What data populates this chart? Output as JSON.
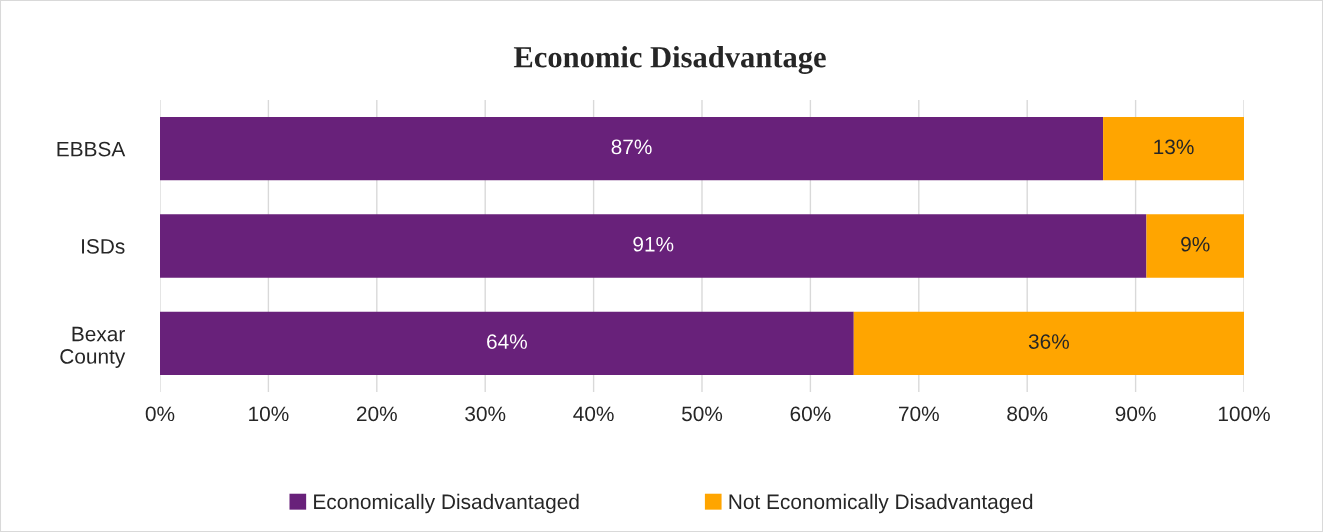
{
  "chart_data": {
    "type": "bar",
    "orientation": "horizontal",
    "stacked": true,
    "title": "Economic Disadvantage",
    "categories": [
      "EBBSA",
      "ISDs",
      "Bexar\nCounty"
    ],
    "series": [
      {
        "name": "Economically Disadvantaged",
        "color": "#68217a",
        "values": [
          87,
          91,
          64
        ],
        "value_labels": [
          "87%",
          "91%",
          "64%"
        ]
      },
      {
        "name": "Not Economically Disadvantaged",
        "color": "#ffa500",
        "values": [
          13,
          9,
          36
        ],
        "value_labels": [
          "13%",
          "9%",
          "36%"
        ]
      }
    ],
    "xlim": [
      0,
      100
    ],
    "xticks": [
      {
        "value": 0,
        "label": "0%"
      },
      {
        "value": 10,
        "label": "10%"
      },
      {
        "value": 20,
        "label": "20%"
      },
      {
        "value": 30,
        "label": "30%"
      },
      {
        "value": 40,
        "label": "40%"
      },
      {
        "value": 50,
        "label": "50%"
      },
      {
        "value": 60,
        "label": "60%"
      },
      {
        "value": 70,
        "label": "70%"
      },
      {
        "value": 80,
        "label": "80%"
      },
      {
        "value": 90,
        "label": "90%"
      },
      {
        "value": 100,
        "label": "100%"
      }
    ],
    "grid": "x",
    "legend": "bottom"
  }
}
